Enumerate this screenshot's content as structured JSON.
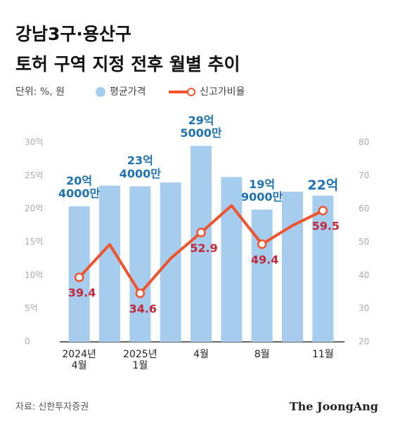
{
  "chart_data": {
    "type": "bar",
    "title": [
      "강남3구·용산구",
      "토허 구역 지정 전후 월별 추이"
    ],
    "unit_note": "단위: %, 원",
    "categories": [
      "2024년\n4월",
      null,
      "2025년\n1월",
      null,
      "4월",
      null,
      "8월",
      null,
      "11월"
    ],
    "ylim": [
      0,
      30
    ],
    "yticks": [
      0,
      {
        "value": 5,
        "label": "5억"
      },
      {
        "value": 10,
        "label": "10억"
      },
      {
        "value": 15,
        "label": "15억"
      },
      {
        "value": 20,
        "label": "20억"
      },
      {
        "value": 25,
        "label": "25억"
      },
      {
        "value": 30,
        "label": "30억"
      }
    ],
    "y2lim": [
      20,
      80
    ],
    "y2ticks": [
      20,
      30,
      40,
      50,
      60,
      70,
      80
    ],
    "series": [
      {
        "name": "평균가격",
        "type": "bar",
        "color": "#a7cdee",
        "values": [
          20.4,
          23.5,
          23.4,
          24.0,
          29.5,
          24.8,
          19.9,
          22.6,
          22
        ],
        "value_labels": [
          "20억\n4000만",
          null,
          "23억\n4000만",
          null,
          "29억\n5000만",
          null,
          "19억\n9000만",
          null,
          "22억"
        ]
      },
      {
        "name": "신고가비율",
        "type": "line",
        "axis": "y2",
        "color": "#f0542d",
        "values": [
          39.4,
          49.3,
          34.6,
          45.1,
          52.9,
          61.0,
          49.4,
          55.0,
          59.5
        ],
        "value_labels": [
          "39.4",
          null,
          "34.6",
          null,
          "52.9",
          null,
          "49.4",
          null,
          "59.5"
        ]
      }
    ],
    "source": "자료: 신한투자증권",
    "brand": "The JoongAng"
  }
}
